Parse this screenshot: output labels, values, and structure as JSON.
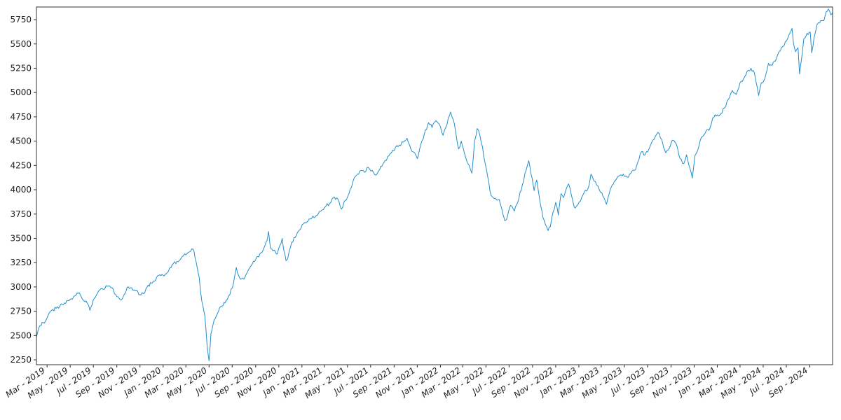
{
  "chart_data": {
    "type": "line",
    "title": "",
    "xlabel": "",
    "ylabel": "",
    "legend": "none",
    "grid": false,
    "colors": {
      "line": "#1f8fce",
      "axis": "#333333",
      "background": "#ffffff"
    },
    "ylim": [
      2200,
      5880
    ],
    "xlim": [
      "2019-02-01",
      "2024-10-31"
    ],
    "y_ticks": [
      2250,
      2500,
      2750,
      3000,
      3250,
      3500,
      3750,
      4000,
      4250,
      4500,
      4750,
      5000,
      5250,
      5500,
      5750
    ],
    "x_ticks": [
      {
        "date": "2019-03-01",
        "label": "Mar - 2019"
      },
      {
        "date": "2019-05-01",
        "label": "May - 2019"
      },
      {
        "date": "2019-07-01",
        "label": "Jul - 2019"
      },
      {
        "date": "2019-09-01",
        "label": "Sep - 2019"
      },
      {
        "date": "2019-11-01",
        "label": "Nov - 2019"
      },
      {
        "date": "2020-01-01",
        "label": "Jan - 2020"
      },
      {
        "date": "2020-03-01",
        "label": "Mar - 2020"
      },
      {
        "date": "2020-05-01",
        "label": "May - 2020"
      },
      {
        "date": "2020-07-01",
        "label": "Jul - 2020"
      },
      {
        "date": "2020-09-01",
        "label": "Sep - 2020"
      },
      {
        "date": "2020-11-01",
        "label": "Nov - 2020"
      },
      {
        "date": "2021-01-01",
        "label": "Jan - 2021"
      },
      {
        "date": "2021-03-01",
        "label": "Mar - 2021"
      },
      {
        "date": "2021-05-01",
        "label": "May - 2021"
      },
      {
        "date": "2021-07-01",
        "label": "Jul - 2021"
      },
      {
        "date": "2021-09-01",
        "label": "Sep - 2021"
      },
      {
        "date": "2021-11-01",
        "label": "Nov - 2021"
      },
      {
        "date": "2022-01-01",
        "label": "Jan - 2022"
      },
      {
        "date": "2022-03-01",
        "label": "Mar - 2022"
      },
      {
        "date": "2022-05-01",
        "label": "May - 2022"
      },
      {
        "date": "2022-07-01",
        "label": "Jul - 2022"
      },
      {
        "date": "2022-09-01",
        "label": "Sep - 2022"
      },
      {
        "date": "2022-11-01",
        "label": "Nov - 2022"
      },
      {
        "date": "2023-01-01",
        "label": "Jan - 2023"
      },
      {
        "date": "2023-03-01",
        "label": "Mar - 2023"
      },
      {
        "date": "2023-05-01",
        "label": "May - 2023"
      },
      {
        "date": "2023-07-01",
        "label": "Jul - 2023"
      },
      {
        "date": "2023-09-01",
        "label": "Sep - 2023"
      },
      {
        "date": "2023-11-01",
        "label": "Nov - 2023"
      },
      {
        "date": "2024-01-01",
        "label": "Jan - 2024"
      },
      {
        "date": "2024-03-01",
        "label": "Mar - 2024"
      },
      {
        "date": "2024-05-01",
        "label": "May - 2024"
      },
      {
        "date": "2024-07-01",
        "label": "Jul - 2024"
      },
      {
        "date": "2024-09-01",
        "label": "Sep - 2024"
      }
    ],
    "series": [
      {
        "color": "#1f8fce",
        "points": [
          [
            "2019-02-01",
            2480
          ],
          [
            "2019-02-10",
            2600
          ],
          [
            "2019-02-25",
            2650
          ],
          [
            "2019-03-10",
            2750
          ],
          [
            "2019-03-25",
            2780
          ],
          [
            "2019-04-10",
            2820
          ],
          [
            "2019-04-25",
            2860
          ],
          [
            "2019-05-10",
            2900
          ],
          [
            "2019-05-25",
            2940
          ],
          [
            "2019-06-03",
            2870
          ],
          [
            "2019-06-15",
            2830
          ],
          [
            "2019-06-22",
            2760
          ],
          [
            "2019-07-01",
            2870
          ],
          [
            "2019-07-15",
            2960
          ],
          [
            "2019-07-25",
            2980
          ],
          [
            "2019-08-10",
            3010
          ],
          [
            "2019-08-20",
            2990
          ],
          [
            "2019-09-01",
            2900
          ],
          [
            "2019-09-10",
            2870
          ],
          [
            "2019-09-20",
            2920
          ],
          [
            "2019-10-01",
            3000
          ],
          [
            "2019-10-10",
            2990
          ],
          [
            "2019-10-20",
            2960
          ],
          [
            "2019-11-01",
            2920
          ],
          [
            "2019-11-10",
            2930
          ],
          [
            "2019-11-20",
            3000
          ],
          [
            "2019-12-01",
            3040
          ],
          [
            "2019-12-15",
            3100
          ],
          [
            "2020-01-01",
            3120
          ],
          [
            "2020-01-15",
            3160
          ],
          [
            "2020-01-25",
            3230
          ],
          [
            "2020-02-10",
            3260
          ],
          [
            "2020-02-20",
            3310
          ],
          [
            "2020-03-01",
            3330
          ],
          [
            "2020-03-10",
            3360
          ],
          [
            "2020-03-20",
            3390
          ],
          [
            "2020-03-28",
            3260
          ],
          [
            "2020-04-05",
            3100
          ],
          [
            "2020-04-12",
            2850
          ],
          [
            "2020-04-20",
            2700
          ],
          [
            "2020-04-26",
            2400
          ],
          [
            "2020-05-01",
            2240
          ],
          [
            "2020-05-06",
            2520
          ],
          [
            "2020-05-12",
            2620
          ],
          [
            "2020-05-20",
            2700
          ],
          [
            "2020-06-01",
            2800
          ],
          [
            "2020-06-15",
            2860
          ],
          [
            "2020-06-25",
            2920
          ],
          [
            "2020-07-05",
            3050
          ],
          [
            "2020-07-12",
            3200
          ],
          [
            "2020-07-20",
            3100
          ],
          [
            "2020-08-01",
            3080
          ],
          [
            "2020-08-10",
            3150
          ],
          [
            "2020-08-20",
            3220
          ],
          [
            "2020-09-01",
            3280
          ],
          [
            "2020-09-15",
            3350
          ],
          [
            "2020-09-25",
            3420
          ],
          [
            "2020-10-01",
            3480
          ],
          [
            "2020-10-05",
            3570
          ],
          [
            "2020-10-10",
            3400
          ],
          [
            "2020-10-20",
            3380
          ],
          [
            "2020-10-28",
            3340
          ],
          [
            "2020-11-03",
            3420
          ],
          [
            "2020-11-10",
            3500
          ],
          [
            "2020-11-15",
            3360
          ],
          [
            "2020-11-20",
            3270
          ],
          [
            "2020-11-25",
            3300
          ],
          [
            "2020-12-05",
            3460
          ],
          [
            "2020-12-20",
            3560
          ],
          [
            "2021-01-05",
            3650
          ],
          [
            "2021-01-20",
            3700
          ],
          [
            "2021-02-05",
            3720
          ],
          [
            "2021-02-20",
            3780
          ],
          [
            "2021-03-05",
            3830
          ],
          [
            "2021-03-15",
            3860
          ],
          [
            "2021-03-25",
            3920
          ],
          [
            "2021-04-05",
            3910
          ],
          [
            "2021-04-15",
            3800
          ],
          [
            "2021-04-25",
            3890
          ],
          [
            "2021-05-05",
            3960
          ],
          [
            "2021-05-15",
            4080
          ],
          [
            "2021-05-25",
            4150
          ],
          [
            "2021-06-05",
            4200
          ],
          [
            "2021-06-15",
            4180
          ],
          [
            "2021-06-25",
            4230
          ],
          [
            "2021-07-05",
            4200
          ],
          [
            "2021-07-15",
            4150
          ],
          [
            "2021-07-25",
            4210
          ],
          [
            "2021-08-05",
            4280
          ],
          [
            "2021-08-15",
            4340
          ],
          [
            "2021-08-25",
            4380
          ],
          [
            "2021-09-05",
            4440
          ],
          [
            "2021-09-15",
            4460
          ],
          [
            "2021-09-25",
            4490
          ],
          [
            "2021-10-05",
            4530
          ],
          [
            "2021-10-15",
            4420
          ],
          [
            "2021-10-25",
            4380
          ],
          [
            "2021-11-01",
            4320
          ],
          [
            "2021-11-10",
            4460
          ],
          [
            "2021-11-20",
            4580
          ],
          [
            "2021-12-01",
            4690
          ],
          [
            "2021-12-10",
            4640
          ],
          [
            "2021-12-20",
            4710
          ],
          [
            "2022-01-01",
            4650
          ],
          [
            "2022-01-08",
            4560
          ],
          [
            "2022-01-15",
            4640
          ],
          [
            "2022-01-22",
            4740
          ],
          [
            "2022-01-28",
            4800
          ],
          [
            "2022-02-04",
            4720
          ],
          [
            "2022-02-10",
            4600
          ],
          [
            "2022-02-18",
            4420
          ],
          [
            "2022-02-25",
            4500
          ],
          [
            "2022-03-05",
            4380
          ],
          [
            "2022-03-12",
            4290
          ],
          [
            "2022-03-18",
            4250
          ],
          [
            "2022-03-25",
            4170
          ],
          [
            "2022-04-01",
            4500
          ],
          [
            "2022-04-08",
            4630
          ],
          [
            "2022-04-15",
            4560
          ],
          [
            "2022-04-22",
            4440
          ],
          [
            "2022-04-28",
            4290
          ],
          [
            "2022-05-05",
            4150
          ],
          [
            "2022-05-12",
            3980
          ],
          [
            "2022-05-20",
            3920
          ],
          [
            "2022-05-28",
            3900
          ],
          [
            "2022-06-05",
            3900
          ],
          [
            "2022-06-12",
            3800
          ],
          [
            "2022-06-20",
            3680
          ],
          [
            "2022-06-25",
            3700
          ],
          [
            "2022-07-05",
            3840
          ],
          [
            "2022-07-15",
            3780
          ],
          [
            "2022-07-25",
            3880
          ],
          [
            "2022-08-05",
            4050
          ],
          [
            "2022-08-15",
            4200
          ],
          [
            "2022-08-22",
            4300
          ],
          [
            "2022-08-28",
            4160
          ],
          [
            "2022-09-05",
            3990
          ],
          [
            "2022-09-12",
            4100
          ],
          [
            "2022-09-20",
            3890
          ],
          [
            "2022-09-28",
            3720
          ],
          [
            "2022-10-05",
            3640
          ],
          [
            "2022-10-12",
            3580
          ],
          [
            "2022-10-18",
            3620
          ],
          [
            "2022-10-25",
            3770
          ],
          [
            "2022-11-01",
            3870
          ],
          [
            "2022-11-08",
            3740
          ],
          [
            "2022-11-15",
            3960
          ],
          [
            "2022-11-22",
            3920
          ],
          [
            "2022-11-28",
            4000
          ],
          [
            "2022-12-05",
            4060
          ],
          [
            "2022-12-12",
            3950
          ],
          [
            "2022-12-20",
            3820
          ],
          [
            "2022-12-28",
            3840
          ],
          [
            "2023-01-05",
            3880
          ],
          [
            "2023-01-15",
            3970
          ],
          [
            "2023-01-25",
            4010
          ],
          [
            "2023-02-02",
            4160
          ],
          [
            "2023-02-10",
            4090
          ],
          [
            "2023-02-20",
            4040
          ],
          [
            "2023-02-28",
            3970
          ],
          [
            "2023-03-08",
            3920
          ],
          [
            "2023-03-15",
            3850
          ],
          [
            "2023-03-22",
            3960
          ],
          [
            "2023-03-30",
            4050
          ],
          [
            "2023-04-10",
            4110
          ],
          [
            "2023-04-20",
            4150
          ],
          [
            "2023-04-28",
            4160
          ],
          [
            "2023-05-08",
            4130
          ],
          [
            "2023-05-18",
            4170
          ],
          [
            "2023-05-28",
            4200
          ],
          [
            "2023-06-05",
            4280
          ],
          [
            "2023-06-15",
            4390
          ],
          [
            "2023-06-25",
            4360
          ],
          [
            "2023-07-05",
            4420
          ],
          [
            "2023-07-15",
            4510
          ],
          [
            "2023-07-25",
            4570
          ],
          [
            "2023-08-01",
            4580
          ],
          [
            "2023-08-10",
            4480
          ],
          [
            "2023-08-18",
            4380
          ],
          [
            "2023-08-28",
            4430
          ],
          [
            "2023-09-05",
            4510
          ],
          [
            "2023-09-15",
            4470
          ],
          [
            "2023-09-25",
            4320
          ],
          [
            "2023-10-05",
            4270
          ],
          [
            "2023-10-12",
            4360
          ],
          [
            "2023-10-20",
            4230
          ],
          [
            "2023-10-27",
            4120
          ],
          [
            "2023-11-03",
            4350
          ],
          [
            "2023-11-10",
            4400
          ],
          [
            "2023-11-20",
            4540
          ],
          [
            "2023-12-01",
            4590
          ],
          [
            "2023-12-10",
            4610
          ],
          [
            "2023-12-20",
            4740
          ],
          [
            "2024-01-01",
            4770
          ],
          [
            "2024-01-10",
            4780
          ],
          [
            "2024-01-20",
            4840
          ],
          [
            "2024-01-30",
            4930
          ],
          [
            "2024-02-10",
            5020
          ],
          [
            "2024-02-20",
            4980
          ],
          [
            "2024-03-01",
            5100
          ],
          [
            "2024-03-10",
            5140
          ],
          [
            "2024-03-20",
            5220
          ],
          [
            "2024-03-30",
            5250
          ],
          [
            "2024-04-08",
            5200
          ],
          [
            "2024-04-15",
            5060
          ],
          [
            "2024-04-19",
            4970
          ],
          [
            "2024-04-26",
            5100
          ],
          [
            "2024-05-05",
            5140
          ],
          [
            "2024-05-15",
            5300
          ],
          [
            "2024-05-25",
            5280
          ],
          [
            "2024-06-05",
            5350
          ],
          [
            "2024-06-15",
            5430
          ],
          [
            "2024-06-25",
            5480
          ],
          [
            "2024-07-05",
            5560
          ],
          [
            "2024-07-12",
            5620
          ],
          [
            "2024-07-16",
            5660
          ],
          [
            "2024-07-20",
            5500
          ],
          [
            "2024-07-25",
            5420
          ],
          [
            "2024-08-01",
            5460
          ],
          [
            "2024-08-05",
            5190
          ],
          [
            "2024-08-10",
            5340
          ],
          [
            "2024-08-16",
            5550
          ],
          [
            "2024-08-25",
            5610
          ],
          [
            "2024-09-02",
            5620
          ],
          [
            "2024-09-06",
            5410
          ],
          [
            "2024-09-12",
            5560
          ],
          [
            "2024-09-20",
            5700
          ],
          [
            "2024-09-30",
            5740
          ],
          [
            "2024-10-08",
            5740
          ],
          [
            "2024-10-14",
            5830
          ],
          [
            "2024-10-20",
            5860
          ],
          [
            "2024-10-26",
            5800
          ],
          [
            "2024-10-31",
            5820
          ]
        ]
      }
    ]
  }
}
